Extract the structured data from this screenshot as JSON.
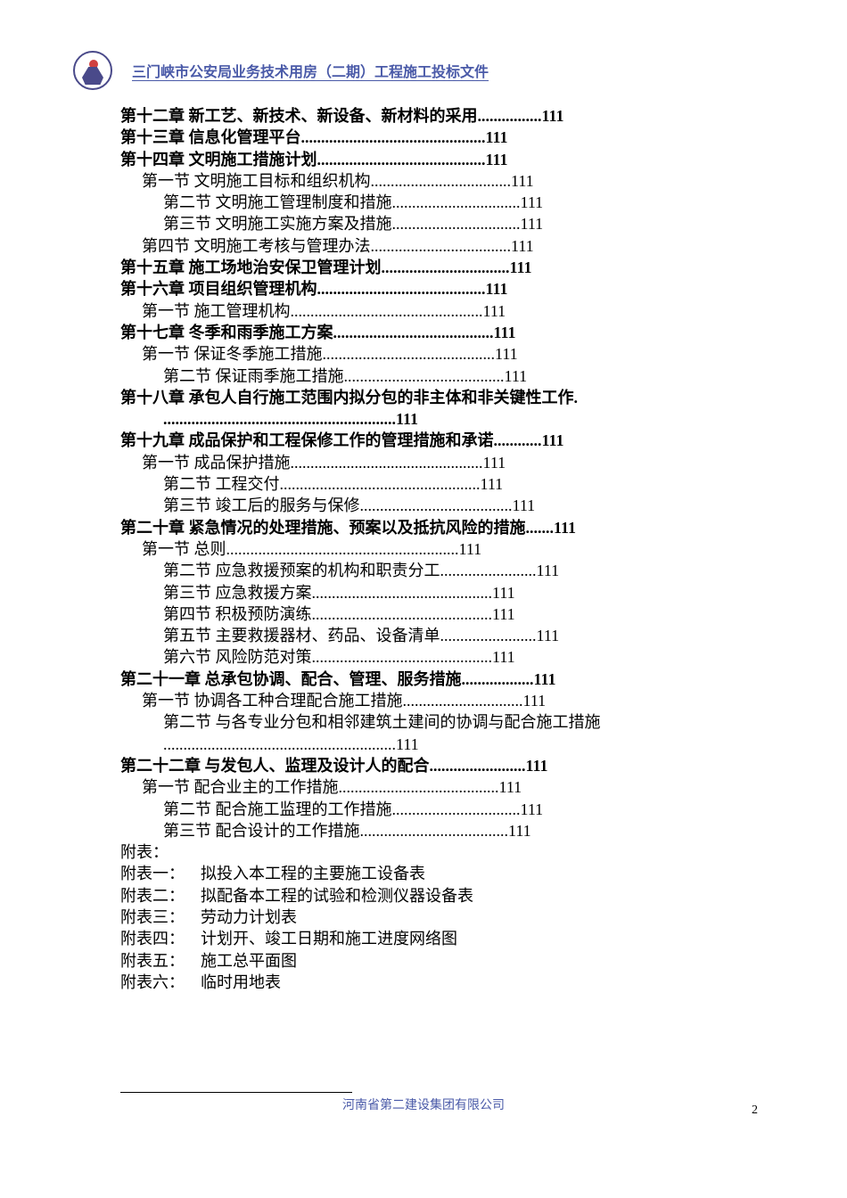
{
  "header_title": "三门峡市公安局业务技术用房（二期）工程施工投标文件",
  "footer_text": "河南省第二建设集团有限公司",
  "page_number": "2",
  "toc": [
    {
      "level": 0,
      "bold": true,
      "text": "第十二章 新工艺、新技术、新设备、新材料的采用",
      "page": "111",
      "dotcount": 16
    },
    {
      "level": 0,
      "bold": true,
      "text": "第十三章 信息化管理平台",
      "page": "111",
      "dotcount": 46
    },
    {
      "level": 0,
      "bold": true,
      "text": "第十四章 文明施工措施计划",
      "page": "111",
      "dotcount": 42
    },
    {
      "level": 1,
      "bold": false,
      "text": "第一节 文明施工目标和组织机构",
      "page": "111",
      "dotcount": 35
    },
    {
      "level": 2,
      "bold": false,
      "text": "第二节 文明施工管理制度和措施",
      "page": "111",
      "dotcount": 32
    },
    {
      "level": 2,
      "bold": false,
      "text": "第三节 文明施工实施方案及措施",
      "page": "111",
      "dotcount": 32
    },
    {
      "level": 1,
      "bold": false,
      "text": "第四节 文明施工考核与管理办法",
      "page": "111",
      "dotcount": 35
    },
    {
      "level": 0,
      "bold": true,
      "text": "第十五章 施工场地治安保卫管理计划",
      "page": "111",
      "dotcount": 32
    },
    {
      "level": 0,
      "bold": true,
      "text": "第十六章 项目组织管理机构",
      "page": "111",
      "dotcount": 42
    },
    {
      "level": 1,
      "bold": false,
      "text": "第一节 施工管理机构",
      "page": "111",
      "dotcount": 48
    },
    {
      "level": 0,
      "bold": true,
      "text": "第十七章 冬季和雨季施工方案",
      "page": "111",
      "dotcount": 40
    },
    {
      "level": 1,
      "bold": false,
      "text": "第一节 保证冬季施工措施",
      "page": "111",
      "dotcount": 43
    },
    {
      "level": 2,
      "bold": false,
      "text": "第二节 保证雨季施工措施",
      "page": "111",
      "dotcount": 40
    },
    {
      "level": 0,
      "bold": true,
      "text": "第十八章 承包人自行施工范围内拟分包的非主体和非关键性工作.",
      "page": "",
      "dotcount": 0
    },
    {
      "level": 2,
      "bold": true,
      "text": "",
      "page": "111",
      "dotcount": 58
    },
    {
      "level": 0,
      "bold": true,
      "text": "第十九章 成品保护和工程保修工作的管理措施和承诺",
      "page": "111",
      "dotcount": 12
    },
    {
      "level": 1,
      "bold": false,
      "text": "第一节 成品保护措施",
      "page": "111",
      "dotcount": 48
    },
    {
      "level": 2,
      "bold": false,
      "text": "第二节 工程交付",
      "page": "111",
      "dotcount": 50
    },
    {
      "level": 2,
      "bold": false,
      "text": "第三节 竣工后的服务与保修",
      "page": "111",
      "dotcount": 38
    },
    {
      "level": 0,
      "bold": true,
      "text": "第二十章 紧急情况的处理措施、预案以及抵抗风险的措施",
      "page": "111",
      "dotcount": 7
    },
    {
      "level": 1,
      "bold": false,
      "text": "第一节 总则",
      "page": "111",
      "dotcount": 58
    },
    {
      "level": 2,
      "bold": false,
      "text": "第二节 应急救援预案的机构和职责分工",
      "page": "111",
      "dotcount": 24
    },
    {
      "level": 2,
      "bold": false,
      "text": "第三节 应急救援方案",
      "page": "111",
      "dotcount": 45
    },
    {
      "level": 2,
      "bold": false,
      "text": "第四节 积极预防演练",
      "page": "111",
      "dotcount": 45
    },
    {
      "level": 2,
      "bold": false,
      "text": "第五节 主要救援器材、药品、设备清单",
      "page": "111",
      "dotcount": 24
    },
    {
      "level": 2,
      "bold": false,
      "text": "第六节 风险防范对策",
      "page": "111",
      "dotcount": 45
    },
    {
      "level": 0,
      "bold": true,
      "text": "第二十一章 总承包协调、配合、管理、服务措施",
      "page": "111",
      "dotcount": 18
    },
    {
      "level": 1,
      "bold": false,
      "text": "第一节 协调各工种合理配合施工措施",
      "page": "111",
      "dotcount": 30
    },
    {
      "level": 2,
      "bold": false,
      "text": "第二节 与各专业分包和相邻建筑土建间的协调与配合施工措施",
      "page": "",
      "dotcount": 0
    },
    {
      "level": 2,
      "bold": false,
      "text": "",
      "page": "111",
      "dotcount": 58
    },
    {
      "level": 0,
      "bold": true,
      "text": "第二十二章 与发包人、监理及设计人的配合",
      "page": "111",
      "dotcount": 24
    },
    {
      "level": 1,
      "bold": false,
      "text": "第一节 配合业主的工作措施",
      "page": "111",
      "dotcount": 40
    },
    {
      "level": 2,
      "bold": false,
      "text": "第二节 配合施工监理的工作措施",
      "page": "111",
      "dotcount": 32
    },
    {
      "level": 2,
      "bold": false,
      "text": "第三节 配合设计的工作措施",
      "page": "111",
      "dotcount": 37
    }
  ],
  "appendix_header": "附表：",
  "appendix": [
    {
      "label": "附表一：",
      "text": "拟投入本工程的主要施工设备表"
    },
    {
      "label": "附表二：",
      "text": "拟配备本工程的试验和检测仪器设备表"
    },
    {
      "label": "附表三：",
      "text": "劳动力计划表"
    },
    {
      "label": "附表四：",
      "text": "计划开、竣工日期和施工进度网络图"
    },
    {
      "label": "附表五：",
      "text": "施工总平面图"
    },
    {
      "label": "附表六：",
      "text": "临时用地表"
    }
  ],
  "colors": {
    "header_blue": "#4a5aa8",
    "text": "#000000",
    "bg": "#ffffff"
  },
  "typography": {
    "body_fontsize": 18,
    "header_fontsize": 16,
    "footer_fontsize": 14,
    "line_height": 24.3
  }
}
